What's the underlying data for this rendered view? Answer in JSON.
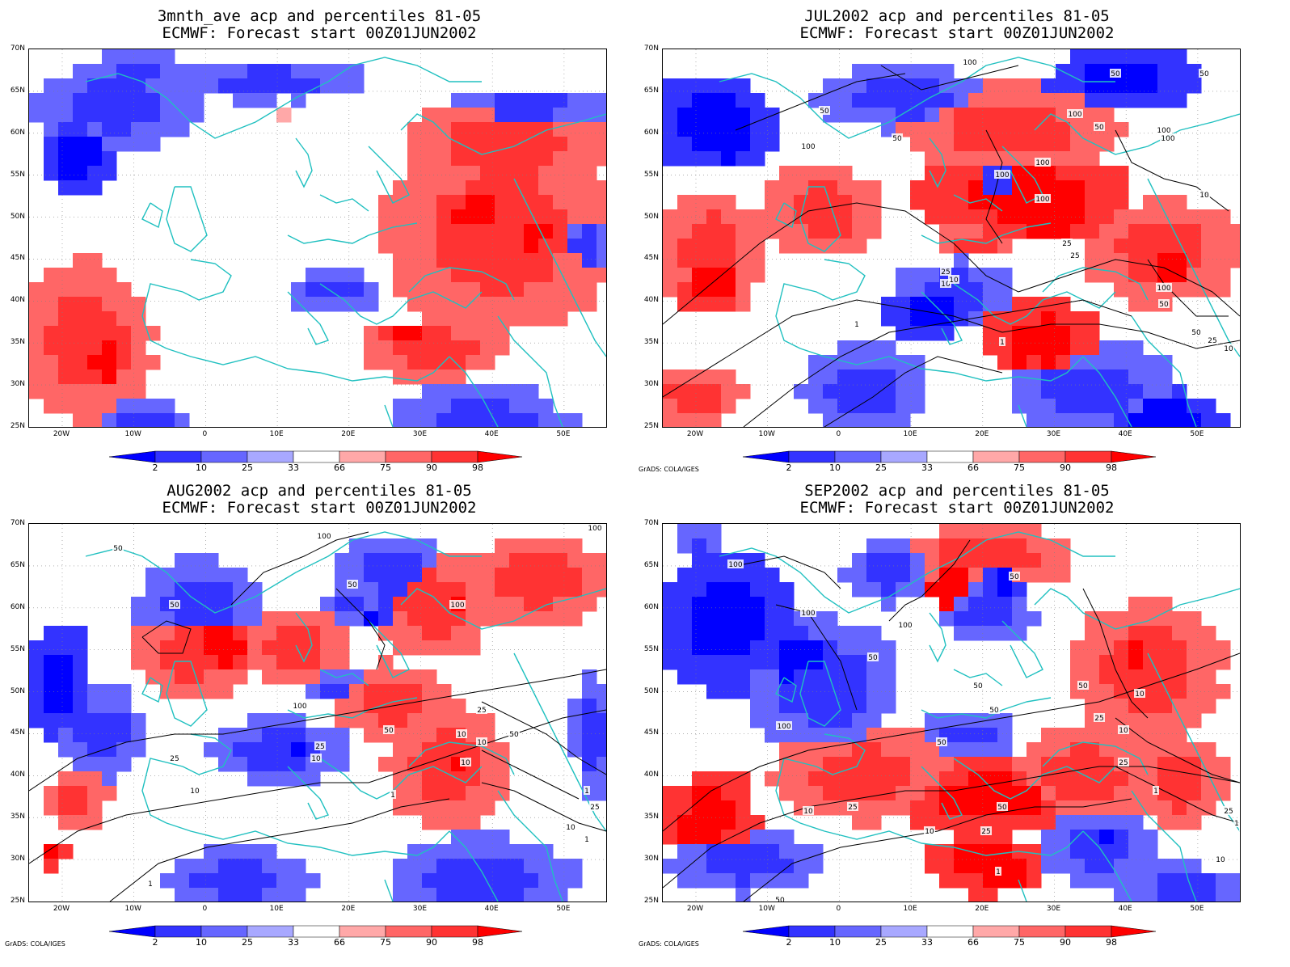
{
  "credit": "GrADS: COLA/IGES",
  "colorbar": {
    "labels": [
      "2",
      "10",
      "25",
      "33",
      "66",
      "75",
      "90",
      "98"
    ],
    "colors": [
      "#0000ff",
      "#3333ff",
      "#6666ff",
      "#a8a8ff",
      "#ffffff",
      "#ffa8a8",
      "#ff6666",
      "#ff3333",
      "#ff0000"
    ]
  },
  "axes": {
    "lat_labels": [
      "70N",
      "65N",
      "60N",
      "55N",
      "50N",
      "45N",
      "40N",
      "35N",
      "30N",
      "25N"
    ],
    "lon_labels": [
      "20W",
      "10W",
      "0",
      "10E",
      "20E",
      "30E",
      "40E",
      "50E"
    ]
  },
  "colors": {
    "coast": "#20c0c0",
    "contour": "#000000"
  },
  "panels": [
    {
      "title1": "3mnth_ave acp and percentiles 81-05",
      "title2": "ECMWF: Forecast start 00Z01JUN2002",
      "contours": []
    },
    {
      "title1": "JUL2002 acp and percentiles 81-05",
      "title2": "ECMWF: Forecast start 00Z01JUN2002",
      "contours": [
        "100",
        "50",
        "100",
        "50",
        "100",
        "100",
        "100",
        "50",
        "100",
        "100",
        "50",
        "50",
        "100",
        "25",
        "10",
        "25",
        "10",
        "1",
        "1",
        "100",
        "50",
        "25",
        "10",
        "50",
        "25",
        "10"
      ]
    },
    {
      "title1": "AUG2002 acp and percentiles 81-05",
      "title2": "ECMWF: Forecast start 00Z01JUN2002",
      "contours": [
        "50",
        "100",
        "50",
        "100",
        "50",
        "100",
        "50",
        "100",
        "25",
        "10",
        "25",
        "10",
        "1",
        "10",
        "10",
        "25",
        "50",
        "10",
        "25",
        "10",
        "1",
        "1",
        "1"
      ]
    },
    {
      "title1": "SEP2002 acp and percentiles 81-05",
      "title2": "ECMWF: Forecast start 00Z01JUN2002",
      "contours": [
        "100",
        "50",
        "100",
        "100",
        "50",
        "50",
        "50",
        "100",
        "50",
        "50",
        "25",
        "10",
        "25",
        "10",
        "25",
        "50",
        "10",
        "25",
        "10",
        "1",
        "1",
        "1",
        "50",
        "25",
        "25",
        "10"
      ]
    }
  ]
}
